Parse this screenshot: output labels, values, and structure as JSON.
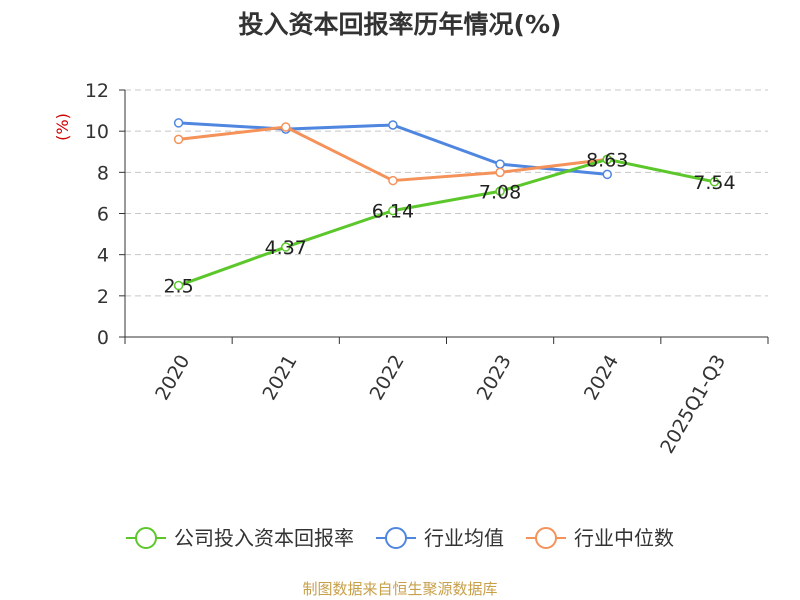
{
  "chart_data": {
    "type": "line",
    "title": "投入资本回报率历年情况(%)",
    "ylabel": "(%)",
    "categories": [
      "2020",
      "2021",
      "2022",
      "2023",
      "2024",
      "2025Q1-Q3"
    ],
    "y_ticks": [
      "0",
      "2",
      "4",
      "6",
      "8",
      "10",
      "12"
    ],
    "ylim": [
      0,
      12
    ],
    "grid": true,
    "legend_position": "bottom",
    "series": [
      {
        "name": "公司投入资本回报率",
        "color": "#5cc72b",
        "values": [
          2.5,
          4.37,
          6.14,
          7.08,
          8.63,
          7.54
        ],
        "labels": [
          "2.5",
          "4.37",
          "6.14",
          "7.08",
          "8.63",
          "7.54"
        ]
      },
      {
        "name": "行业均值",
        "color": "#4f86e0",
        "values": [
          10.4,
          10.1,
          10.3,
          8.4,
          7.9,
          null
        ]
      },
      {
        "name": "行业中位数",
        "color": "#f4925a",
        "values": [
          9.6,
          10.2,
          7.6,
          8.0,
          8.63,
          null
        ]
      }
    ]
  },
  "source": "制图数据来自恒生聚源数据库"
}
